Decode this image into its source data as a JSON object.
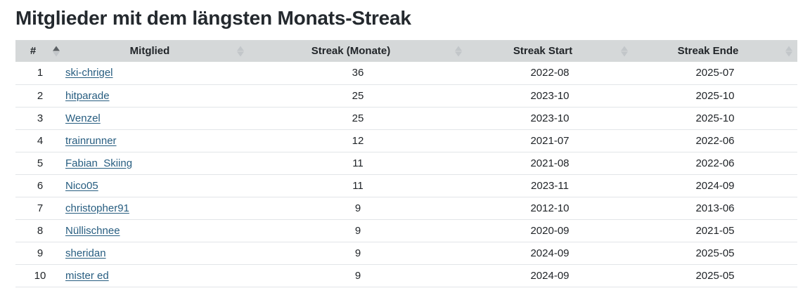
{
  "page": {
    "title": "Mitglieder mit dem längsten Monats-Streak"
  },
  "table": {
    "columns": [
      {
        "label": "#",
        "sort": "asc"
      },
      {
        "label": "Mitglied",
        "sort": "none"
      },
      {
        "label": "Streak (Monate)",
        "sort": "none"
      },
      {
        "label": "Streak Start",
        "sort": "none"
      },
      {
        "label": "Streak Ende",
        "sort": "none"
      }
    ],
    "rows": [
      {
        "rank": "1",
        "member": "ski-chrigel",
        "streak_months": "36",
        "streak_start": "2022-08",
        "streak_end": "2025-07"
      },
      {
        "rank": "2",
        "member": "hitparade",
        "streak_months": "25",
        "streak_start": "2023-10",
        "streak_end": "2025-10"
      },
      {
        "rank": "3",
        "member": "Wenzel",
        "streak_months": "25",
        "streak_start": "2023-10",
        "streak_end": "2025-10"
      },
      {
        "rank": "4",
        "member": "trainrunner",
        "streak_months": "12",
        "streak_start": "2021-07",
        "streak_end": "2022-06"
      },
      {
        "rank": "5",
        "member": "Fabian_Skiing",
        "streak_months": "11",
        "streak_start": "2021-08",
        "streak_end": "2022-06"
      },
      {
        "rank": "6",
        "member": "Nico05",
        "streak_months": "11",
        "streak_start": "2023-11",
        "streak_end": "2024-09"
      },
      {
        "rank": "7",
        "member": "christopher91",
        "streak_months": "9",
        "streak_start": "2012-10",
        "streak_end": "2013-06"
      },
      {
        "rank": "8",
        "member": "Nüllischnee",
        "streak_months": "9",
        "streak_start": "2020-09",
        "streak_end": "2021-05"
      },
      {
        "rank": "9",
        "member": "sheridan",
        "streak_months": "9",
        "streak_start": "2024-09",
        "streak_end": "2025-05"
      },
      {
        "rank": "10",
        "member": "mister ed",
        "streak_months": "9",
        "streak_start": "2024-09",
        "streak_end": "2025-05"
      }
    ]
  },
  "colors": {
    "header_bg": "#d5d8d9",
    "row_border": "#e2e5e8",
    "link": "#275d80",
    "title_text": "#24292e",
    "body_text": "#212529",
    "sort_icon_active": "#5b6064",
    "sort_icon_inactive": "#c2c6c9"
  }
}
